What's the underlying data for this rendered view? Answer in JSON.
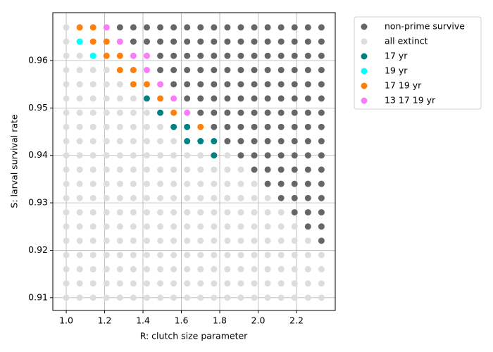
{
  "chart_data": {
    "type": "scatter",
    "xlabel": "R: clutch size parameter",
    "ylabel": "S: larval survival rate",
    "xlim": [
      0.93,
      2.402
    ],
    "ylim": [
      0.9073,
      0.9701
    ],
    "xticks": [
      {
        "value": 1,
        "label": "1.0"
      },
      1.2,
      1.4,
      1.6,
      1.8,
      {
        "value": 2,
        "label": "2.0"
      },
      2.2
    ],
    "yticks": [
      0.91,
      0.92,
      0.93,
      0.94,
      0.95,
      0.96
    ],
    "grid": true,
    "legend": "outside upper right",
    "series": [
      {
        "name": "non-prime survive",
        "color": "#666666",
        "x": [
          1.28,
          1.35,
          1.42,
          1.49,
          1.56,
          1.63,
          1.7,
          1.77,
          1.84,
          1.91,
          1.98,
          2.05,
          2.12,
          2.19,
          2.26,
          2.33,
          1.35,
          1.42,
          1.49,
          1.56,
          1.63,
          1.7,
          1.77,
          1.84,
          1.91,
          1.98,
          2.05,
          2.12,
          2.19,
          2.26,
          2.33,
          1.49,
          1.56,
          1.63,
          1.7,
          1.77,
          1.84,
          1.91,
          1.98,
          2.05,
          2.12,
          2.19,
          2.26,
          2.33,
          1.49,
          1.56,
          1.63,
          1.7,
          1.77,
          1.84,
          1.91,
          1.98,
          2.05,
          2.12,
          2.19,
          2.26,
          2.33,
          1.56,
          1.63,
          1.7,
          1.77,
          1.84,
          1.91,
          1.98,
          2.05,
          2.12,
          2.19,
          2.26,
          2.33,
          1.63,
          1.7,
          1.77,
          1.84,
          1.91,
          1.98,
          2.05,
          2.12,
          2.19,
          2.26,
          2.33,
          1.7,
          1.77,
          1.84,
          1.91,
          1.98,
          2.05,
          2.12,
          2.19,
          2.26,
          2.33,
          1.77,
          1.84,
          1.91,
          1.98,
          2.05,
          2.12,
          2.19,
          2.26,
          2.33,
          1.84,
          1.91,
          1.98,
          2.05,
          2.12,
          2.19,
          2.26,
          2.33,
          1.91,
          1.98,
          2.05,
          2.12,
          2.19,
          2.26,
          2.33,
          1.98,
          2.05,
          2.12,
          2.19,
          2.26,
          2.33,
          2.05,
          2.12,
          2.19,
          2.26,
          2.33,
          2.12,
          2.19,
          2.26,
          2.33,
          2.19,
          2.26,
          2.33,
          2.26,
          2.33,
          2.33
        ],
        "y": [
          0.967,
          0.967,
          0.967,
          0.967,
          0.967,
          0.967,
          0.967,
          0.967,
          0.967,
          0.967,
          0.967,
          0.967,
          0.967,
          0.967,
          0.967,
          0.967,
          0.964,
          0.964,
          0.964,
          0.964,
          0.964,
          0.964,
          0.964,
          0.964,
          0.964,
          0.964,
          0.964,
          0.964,
          0.964,
          0.964,
          0.964,
          0.961,
          0.961,
          0.961,
          0.961,
          0.961,
          0.961,
          0.961,
          0.961,
          0.961,
          0.961,
          0.961,
          0.961,
          0.961,
          0.958,
          0.958,
          0.958,
          0.958,
          0.958,
          0.958,
          0.958,
          0.958,
          0.958,
          0.958,
          0.958,
          0.958,
          0.958,
          0.955,
          0.955,
          0.955,
          0.955,
          0.955,
          0.955,
          0.955,
          0.955,
          0.955,
          0.955,
          0.955,
          0.955,
          0.952,
          0.952,
          0.952,
          0.952,
          0.952,
          0.952,
          0.952,
          0.952,
          0.952,
          0.952,
          0.952,
          0.949,
          0.949,
          0.949,
          0.949,
          0.949,
          0.949,
          0.949,
          0.949,
          0.949,
          0.949,
          0.946,
          0.946,
          0.946,
          0.946,
          0.946,
          0.946,
          0.946,
          0.946,
          0.946,
          0.943,
          0.943,
          0.943,
          0.943,
          0.943,
          0.943,
          0.943,
          0.943,
          0.94,
          0.94,
          0.94,
          0.94,
          0.94,
          0.94,
          0.94,
          0.937,
          0.937,
          0.937,
          0.937,
          0.937,
          0.937,
          0.934,
          0.934,
          0.934,
          0.934,
          0.934,
          0.931,
          0.931,
          0.931,
          0.931,
          0.928,
          0.928,
          0.928,
          0.925,
          0.925,
          0.922
        ]
      },
      {
        "name": "all extinct",
        "color": "#dddddd",
        "x": [
          1.0,
          1.07,
          1.14,
          1.21,
          1.28,
          1.35,
          1.42,
          1.49,
          1.56,
          1.63,
          1.7,
          1.77,
          1.84,
          1.91,
          1.98,
          2.05,
          2.12,
          2.19,
          2.26,
          2.33,
          1.0,
          1.07,
          1.14,
          1.21,
          1.28,
          1.35,
          1.42,
          1.49,
          1.56,
          1.63,
          1.7,
          1.77,
          1.84,
          1.91,
          1.98,
          2.05,
          2.12,
          2.19,
          2.26,
          2.33,
          1.0,
          1.07,
          1.14,
          1.21,
          1.28,
          1.35,
          1.42,
          1.49,
          1.56,
          1.63,
          1.7,
          1.77,
          1.84,
          1.91,
          1.98,
          2.05,
          2.12,
          2.19,
          2.26,
          2.33,
          1.0,
          1.07,
          1.14,
          1.21,
          1.28,
          1.35,
          1.42,
          1.49,
          1.56,
          1.63,
          1.7,
          1.77,
          1.84,
          1.91,
          1.98,
          2.05,
          2.12,
          2.19,
          2.26,
          2.33,
          1.0,
          1.07,
          1.14,
          1.21,
          1.28,
          1.35,
          1.42,
          1.49,
          1.56,
          1.63,
          1.7,
          1.77,
          1.84,
          1.91,
          1.98,
          2.05,
          2.12,
          2.19,
          2.26,
          1.0,
          1.07,
          1.14,
          1.21,
          1.28,
          1.35,
          1.42,
          1.49,
          1.56,
          1.63,
          1.7,
          1.77,
          1.84,
          1.91,
          1.98,
          2.05,
          2.12,
          2.19,
          1.0,
          1.07,
          1.14,
          1.21,
          1.28,
          1.35,
          1.42,
          1.49,
          1.56,
          1.63,
          1.7,
          1.77,
          1.84,
          1.91,
          1.98,
          2.05,
          2.12,
          1.0,
          1.07,
          1.14,
          1.21,
          1.28,
          1.35,
          1.42,
          1.49,
          1.56,
          1.63,
          1.7,
          1.77,
          1.84,
          1.91,
          1.98,
          2.05,
          1.0,
          1.07,
          1.14,
          1.21,
          1.28,
          1.35,
          1.42,
          1.49,
          1.56,
          1.63,
          1.7,
          1.77,
          1.84,
          1.91,
          1.98,
          1.0,
          1.07,
          1.14,
          1.21,
          1.28,
          1.35,
          1.42,
          1.49,
          1.56,
          1.63,
          1.7,
          1.77,
          1.84,
          1.91,
          1.0,
          1.07,
          1.14,
          1.21,
          1.28,
          1.35,
          1.42,
          1.49,
          1.56,
          1.63,
          1.7,
          1.84,
          1.0,
          1.07,
          1.14,
          1.21,
          1.28,
          1.35,
          1.42,
          1.49,
          1.56,
          1.0,
          1.07,
          1.14,
          1.21,
          1.28,
          1.35,
          1.42,
          1.49,
          1.0,
          1.07,
          1.14,
          1.21,
          1.28,
          1.35,
          1.42,
          1.0,
          1.07,
          1.14,
          1.21,
          1.28,
          1.35,
          1.0,
          1.07,
          1.14,
          1.21,
          1.28,
          1.0,
          1.07,
          1.14,
          1.21,
          1.0,
          1.07,
          1.0,
          1.0
        ],
        "y": [
          0.91,
          0.91,
          0.91,
          0.91,
          0.91,
          0.91,
          0.91,
          0.91,
          0.91,
          0.91,
          0.91,
          0.91,
          0.91,
          0.91,
          0.91,
          0.91,
          0.91,
          0.91,
          0.91,
          0.91,
          0.913,
          0.913,
          0.913,
          0.913,
          0.913,
          0.913,
          0.913,
          0.913,
          0.913,
          0.913,
          0.913,
          0.913,
          0.913,
          0.913,
          0.913,
          0.913,
          0.913,
          0.913,
          0.913,
          0.913,
          0.916,
          0.916,
          0.916,
          0.916,
          0.916,
          0.916,
          0.916,
          0.916,
          0.916,
          0.916,
          0.916,
          0.916,
          0.916,
          0.916,
          0.916,
          0.916,
          0.916,
          0.916,
          0.916,
          0.916,
          0.919,
          0.919,
          0.919,
          0.919,
          0.919,
          0.919,
          0.919,
          0.919,
          0.919,
          0.919,
          0.919,
          0.919,
          0.919,
          0.919,
          0.919,
          0.919,
          0.919,
          0.919,
          0.919,
          0.919,
          0.922,
          0.922,
          0.922,
          0.922,
          0.922,
          0.922,
          0.922,
          0.922,
          0.922,
          0.922,
          0.922,
          0.922,
          0.922,
          0.922,
          0.922,
          0.922,
          0.922,
          0.922,
          0.922,
          0.925,
          0.925,
          0.925,
          0.925,
          0.925,
          0.925,
          0.925,
          0.925,
          0.925,
          0.925,
          0.925,
          0.925,
          0.925,
          0.925,
          0.925,
          0.925,
          0.925,
          0.925,
          0.928,
          0.928,
          0.928,
          0.928,
          0.928,
          0.928,
          0.928,
          0.928,
          0.928,
          0.928,
          0.928,
          0.928,
          0.928,
          0.928,
          0.928,
          0.928,
          0.928,
          0.931,
          0.931,
          0.931,
          0.931,
          0.931,
          0.931,
          0.931,
          0.931,
          0.931,
          0.931,
          0.931,
          0.931,
          0.931,
          0.931,
          0.931,
          0.931,
          0.934,
          0.934,
          0.934,
          0.934,
          0.934,
          0.934,
          0.934,
          0.934,
          0.934,
          0.934,
          0.934,
          0.934,
          0.934,
          0.934,
          0.934,
          0.937,
          0.937,
          0.937,
          0.937,
          0.937,
          0.937,
          0.937,
          0.937,
          0.937,
          0.937,
          0.937,
          0.937,
          0.937,
          0.937,
          0.94,
          0.94,
          0.94,
          0.94,
          0.94,
          0.94,
          0.94,
          0.94,
          0.94,
          0.94,
          0.94,
          0.94,
          0.943,
          0.943,
          0.943,
          0.943,
          0.943,
          0.943,
          0.943,
          0.943,
          0.943,
          0.946,
          0.946,
          0.946,
          0.946,
          0.946,
          0.946,
          0.946,
          0.946,
          0.949,
          0.949,
          0.949,
          0.949,
          0.949,
          0.949,
          0.949,
          0.952,
          0.952,
          0.952,
          0.952,
          0.952,
          0.952,
          0.955,
          0.955,
          0.955,
          0.955,
          0.955,
          0.958,
          0.958,
          0.958,
          0.958,
          0.961,
          0.961,
          0.964,
          0.967
        ]
      },
      {
        "name": "17 yr",
        "color": "#008080",
        "x": [
          1.42,
          1.49,
          1.56,
          1.63,
          1.63,
          1.7,
          1.77,
          1.77
        ],
        "y": [
          0.952,
          0.949,
          0.946,
          0.946,
          0.943,
          0.943,
          0.943,
          0.94
        ]
      },
      {
        "name": "19 yr",
        "color": "#00ffff",
        "x": [
          1.07,
          1.14
        ],
        "y": [
          0.964,
          0.961
        ]
      },
      {
        "name": "17 19 yr",
        "color": "#ff7f0e",
        "x": [
          1.07,
          1.14,
          1.14,
          1.21,
          1.21,
          1.28,
          1.28,
          1.35,
          1.35,
          1.42,
          1.49,
          1.56,
          1.7
        ],
        "y": [
          0.967,
          0.967,
          0.964,
          0.964,
          0.961,
          0.961,
          0.958,
          0.958,
          0.955,
          0.955,
          0.952,
          0.949,
          0.946
        ]
      },
      {
        "name": "13 17 19 yr",
        "color": "#f97cf9",
        "x": [
          1.21,
          1.28,
          1.35,
          1.42,
          1.42,
          1.49,
          1.56,
          1.63
        ],
        "y": [
          0.967,
          0.964,
          0.961,
          0.961,
          0.958,
          0.955,
          0.952,
          0.949
        ]
      }
    ]
  }
}
